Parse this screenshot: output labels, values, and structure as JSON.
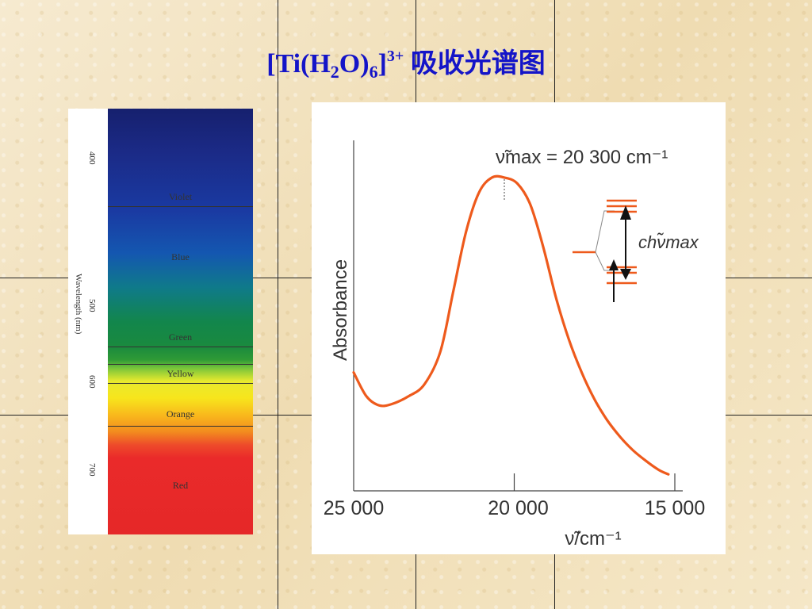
{
  "title": {
    "prefix": "[Ti(H",
    "sub1": "2",
    "mid": "O)",
    "sub2": "6",
    "close": "]",
    "sup": "3+",
    "suffix": " 吸收光谱图"
  },
  "spectrum": {
    "axis_label": "Wavelength (nm)",
    "ticks": [
      "400",
      "500",
      "600",
      "700"
    ],
    "bands": [
      "Violet",
      "Blue",
      "Green",
      "Yellow",
      "Orange",
      "Red"
    ]
  },
  "chart_data": {
    "type": "line",
    "xlabel": "ν̃/cm⁻¹",
    "ylabel": "Absorbance",
    "xlim": [
      25000,
      15000
    ],
    "x_ticks": [
      "25 000",
      "20 000",
      "15 000"
    ],
    "annotation": "ν̃max = 20 300 cm⁻¹",
    "inset_label": "chν̃max",
    "series": [
      {
        "color": "#ee5a1c",
        "x": [
          25000,
          24600,
          24200,
          23800,
          23300,
          22800,
          22300,
          21900,
          21500,
          21100,
          20700,
          20300,
          19900,
          19500,
          19100,
          18700,
          18300,
          17900,
          17500,
          17100,
          16700,
          16300,
          15900,
          15500,
          15200
        ],
        "y": [
          0.35,
          0.27,
          0.24,
          0.245,
          0.27,
          0.31,
          0.42,
          0.62,
          0.82,
          0.95,
          1.0,
          1.0,
          0.98,
          0.91,
          0.77,
          0.6,
          0.46,
          0.35,
          0.26,
          0.19,
          0.135,
          0.09,
          0.055,
          0.025,
          0.01
        ]
      }
    ]
  }
}
